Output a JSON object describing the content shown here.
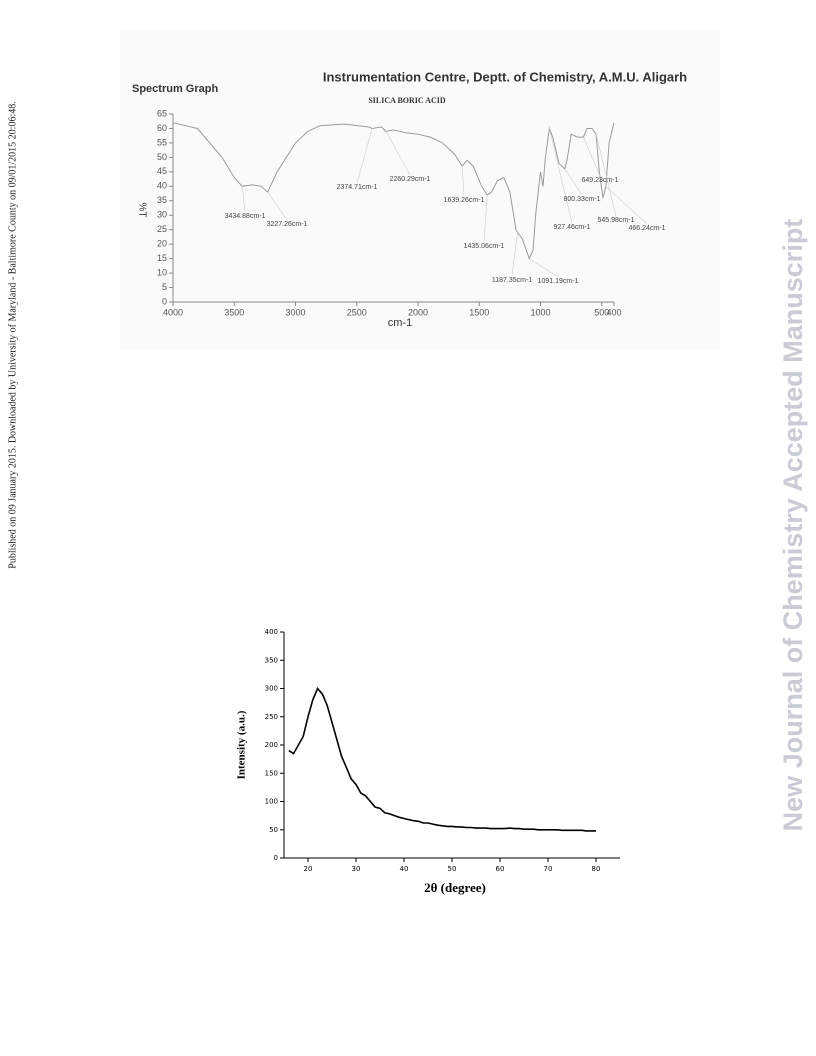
{
  "side_note": "Published on 09 January 2015. Downloaded by University of Maryland - Baltimore County on 09/01/2015 20:06:48.",
  "watermark": "New Journal of Chemistry Accepted Manuscript",
  "chart_data": [
    {
      "type": "line",
      "title": "Instrumentation Centre, Deptt. of Chemistry, A.M.U. Aligarh",
      "subtitle": "SILICA BORIC ACID",
      "label": "Spectrum Graph",
      "x_label": "cm-1",
      "y_label": "%T",
      "xlim": [
        4000,
        400
      ],
      "xticks": [
        4000,
        3500,
        3000,
        2500,
        2000,
        1500,
        1000,
        500,
        400
      ],
      "ylim": [
        0,
        65
      ],
      "yticks": [
        0,
        5,
        10,
        15,
        20,
        25,
        30,
        35,
        40,
        45,
        50,
        55,
        60,
        65
      ],
      "x": [
        4000,
        3800,
        3600,
        3500,
        3434.88,
        3350,
        3280,
        3227.26,
        3150,
        3000,
        2900,
        2800,
        2600,
        2500,
        2400,
        2374.71,
        2300,
        2260.29,
        2200,
        2100,
        2000,
        1900,
        1800,
        1700,
        1639.26,
        1600,
        1550,
        1480,
        1435.06,
        1400,
        1350,
        1300,
        1250,
        1200,
        1187.35,
        1150,
        1091.19,
        1060,
        1040,
        1000,
        980,
        960,
        927.46,
        900,
        850,
        800.33,
        780,
        750,
        700,
        649.23,
        620,
        580,
        545.98,
        520,
        490,
        466.24,
        440,
        400
      ],
      "series": [
        {
          "color": "#9a9a9a",
          "values": [
            62,
            60,
            50,
            43,
            40,
            40.5,
            40,
            38,
            45,
            55,
            59,
            61,
            61.5,
            61,
            60.5,
            60,
            60.5,
            59,
            59.5,
            58.5,
            58,
            57,
            55,
            51,
            47,
            49,
            47,
            40,
            37,
            38,
            42,
            43,
            38,
            25,
            24,
            22,
            15,
            18,
            30,
            45,
            40,
            50,
            60,
            57,
            48,
            46,
            50,
            58,
            57,
            57,
            60,
            60,
            58,
            45,
            36,
            40,
            55,
            62
          ]
        }
      ],
      "annotations": [
        {
          "x": 3434.88,
          "y": 40,
          "label": "3434.88cm-1"
        },
        {
          "x": 3227.26,
          "y": 38,
          "label": "3227.26cm-1"
        },
        {
          "x": 2374.71,
          "y": 60,
          "label": "2374.71cm-1"
        },
        {
          "x": 2260.29,
          "y": 59,
          "label": "2260.29cm-1"
        },
        {
          "x": 1639.26,
          "y": 47,
          "label": "1639.26cm-1"
        },
        {
          "x": 1435.06,
          "y": 37,
          "label": "1435.06cm-1"
        },
        {
          "x": 1187.35,
          "y": 24,
          "label": "1187.35cm-1"
        },
        {
          "x": 1091.19,
          "y": 15,
          "label": "1091.19cm-1"
        },
        {
          "x": 927.46,
          "y": 60,
          "label": "927.46cm-1"
        },
        {
          "x": 800.33,
          "y": 46,
          "label": "800.33cm-1"
        },
        {
          "x": 649.23,
          "y": 57,
          "label": "649.23cm-1"
        },
        {
          "x": 545.98,
          "y": 58,
          "label": "545.98cm-1"
        },
        {
          "x": 466.24,
          "y": 40,
          "label": "466.24cm-1"
        }
      ]
    },
    {
      "type": "line",
      "x_label": "2θ (degree)",
      "y_label": "Intensity (a.u.)",
      "xlim": [
        15,
        85
      ],
      "xticks": [
        20,
        30,
        40,
        50,
        60,
        70,
        80
      ],
      "ylim": [
        0,
        400
      ],
      "yticks": [
        0,
        50,
        100,
        150,
        200,
        250,
        300,
        350,
        400
      ],
      "x": [
        16,
        17,
        18,
        19,
        20,
        21,
        22,
        23,
        24,
        25,
        26,
        27,
        28,
        29,
        30,
        31,
        32,
        33,
        34,
        35,
        36,
        37,
        38,
        39,
        40,
        41,
        42,
        43,
        44,
        45,
        46,
        47,
        48,
        49,
        50,
        51,
        52,
        53,
        54,
        55,
        56,
        57,
        58,
        59,
        60,
        61,
        62,
        63,
        64,
        65,
        66,
        67,
        68,
        69,
        70,
        71,
        72,
        73,
        74,
        75,
        76,
        77,
        78,
        79,
        80
      ],
      "series": [
        {
          "color": "#000000",
          "values": [
            190,
            185,
            200,
            215,
            250,
            280,
            300,
            290,
            270,
            240,
            210,
            180,
            160,
            140,
            130,
            115,
            110,
            100,
            90,
            88,
            80,
            78,
            75,
            72,
            70,
            68,
            66,
            65,
            62,
            62,
            60,
            58,
            57,
            56,
            56,
            55,
            55,
            54,
            54,
            53,
            53,
            53,
            52,
            52,
            52,
            52,
            53,
            52,
            52,
            51,
            51,
            51,
            50,
            50,
            50,
            50,
            50,
            49,
            49,
            49,
            49,
            49,
            48,
            48,
            48
          ]
        }
      ]
    }
  ]
}
